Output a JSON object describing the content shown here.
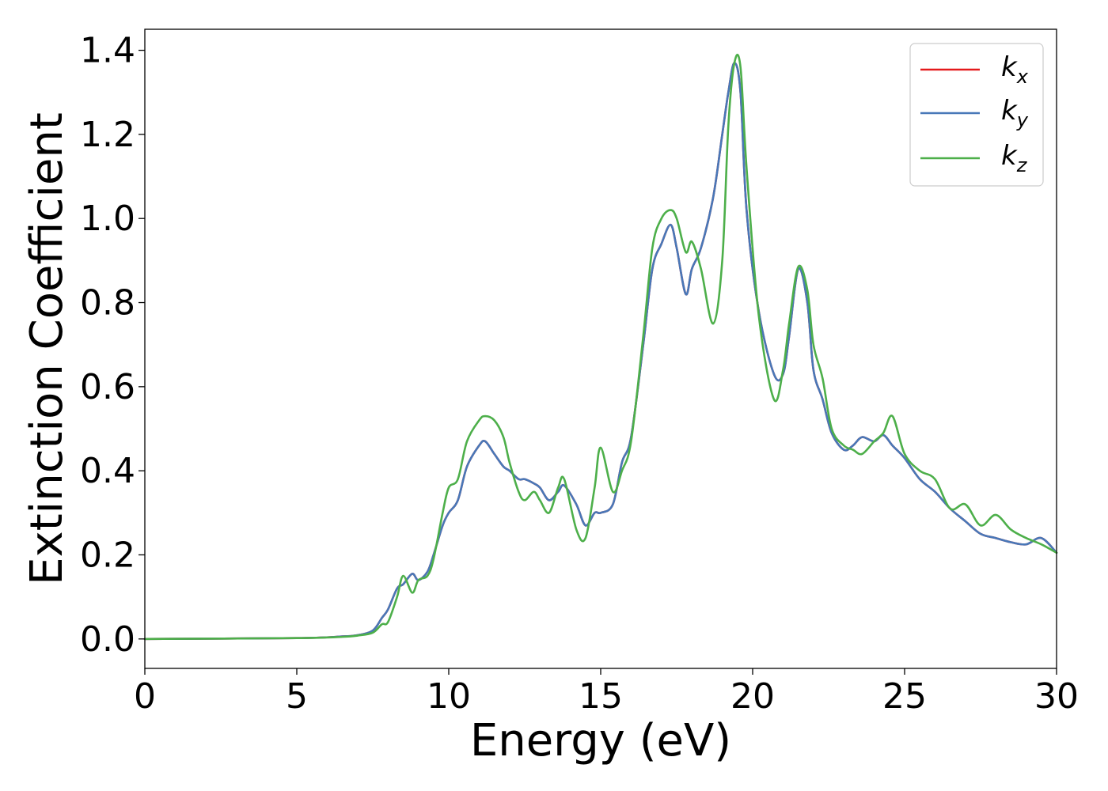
{
  "chart_data": {
    "type": "line",
    "xlabel": "Energy (eV)",
    "ylabel": "Extinction Coefficient",
    "xlim": [
      0,
      30
    ],
    "ylim": [
      -0.07,
      1.45
    ],
    "xticks": [
      "0",
      "5",
      "10",
      "15",
      "20",
      "25",
      "30"
    ],
    "yticks": [
      "0.0",
      "0.2",
      "0.4",
      "0.6",
      "0.8",
      "1.0",
      "1.2",
      "1.4"
    ],
    "grid": false,
    "legend_position": "top-right",
    "series": [
      {
        "name": "k_x",
        "label_base": "k",
        "label_sub": "x",
        "color": "#e41a1c",
        "x": [
          0,
          5,
          6.5,
          7,
          7.5,
          7.8,
          8,
          8.3,
          8.5,
          8.8,
          9,
          9.3,
          9.5,
          9.8,
          10,
          10.3,
          10.6,
          11,
          11.2,
          11.5,
          11.8,
          12,
          12.3,
          12.5,
          12.8,
          13,
          13.3,
          13.6,
          13.8,
          14.2,
          14.5,
          14.8,
          15,
          15.4,
          15.7,
          16,
          16.4,
          16.7,
          17,
          17.3,
          17.5,
          17.8,
          18,
          18.3,
          18.7,
          19,
          19.2,
          19.4,
          19.6,
          19.8,
          20.2,
          20.7,
          21,
          21.2,
          21.5,
          21.8,
          22,
          22.3,
          22.6,
          23,
          23.3,
          23.6,
          24,
          24.3,
          24.6,
          25,
          25.5,
          26,
          26.5,
          27,
          27.5,
          28,
          28.5,
          29,
          29.5,
          30
        ],
        "y": [
          0.0,
          0.002,
          0.006,
          0.009,
          0.02,
          0.05,
          0.07,
          0.12,
          0.13,
          0.155,
          0.14,
          0.16,
          0.2,
          0.27,
          0.3,
          0.33,
          0.41,
          0.46,
          0.47,
          0.44,
          0.41,
          0.4,
          0.38,
          0.38,
          0.37,
          0.36,
          0.33,
          0.35,
          0.365,
          0.32,
          0.27,
          0.3,
          0.3,
          0.32,
          0.42,
          0.48,
          0.7,
          0.88,
          0.94,
          0.985,
          0.93,
          0.82,
          0.88,
          0.93,
          1.05,
          1.2,
          1.3,
          1.37,
          1.3,
          1.02,
          0.78,
          0.63,
          0.63,
          0.72,
          0.88,
          0.8,
          0.64,
          0.57,
          0.49,
          0.45,
          0.46,
          0.48,
          0.47,
          0.485,
          0.46,
          0.43,
          0.38,
          0.35,
          0.31,
          0.28,
          0.25,
          0.24,
          0.23,
          0.225,
          0.24,
          0.205
        ]
      },
      {
        "name": "k_y",
        "label_base": "k",
        "label_sub": "y",
        "color": "#4878b8",
        "x": [
          0,
          5,
          6.5,
          7,
          7.5,
          7.8,
          8,
          8.3,
          8.5,
          8.8,
          9,
          9.3,
          9.5,
          9.8,
          10,
          10.3,
          10.6,
          11,
          11.2,
          11.5,
          11.8,
          12,
          12.3,
          12.5,
          12.8,
          13,
          13.3,
          13.6,
          13.8,
          14.2,
          14.5,
          14.8,
          15,
          15.4,
          15.7,
          16,
          16.4,
          16.7,
          17,
          17.3,
          17.5,
          17.8,
          18,
          18.3,
          18.7,
          19,
          19.2,
          19.4,
          19.6,
          19.8,
          20.2,
          20.7,
          21,
          21.2,
          21.5,
          21.8,
          22,
          22.3,
          22.6,
          23,
          23.3,
          23.6,
          24,
          24.3,
          24.6,
          25,
          25.5,
          26,
          26.5,
          27,
          27.5,
          28,
          28.5,
          29,
          29.5,
          30
        ],
        "y": [
          0.0,
          0.002,
          0.006,
          0.009,
          0.02,
          0.05,
          0.07,
          0.12,
          0.13,
          0.155,
          0.14,
          0.16,
          0.2,
          0.27,
          0.3,
          0.33,
          0.41,
          0.46,
          0.47,
          0.44,
          0.41,
          0.4,
          0.38,
          0.38,
          0.37,
          0.36,
          0.33,
          0.35,
          0.365,
          0.32,
          0.27,
          0.3,
          0.3,
          0.32,
          0.42,
          0.48,
          0.7,
          0.88,
          0.94,
          0.985,
          0.93,
          0.82,
          0.88,
          0.93,
          1.05,
          1.2,
          1.3,
          1.37,
          1.3,
          1.02,
          0.78,
          0.63,
          0.63,
          0.72,
          0.88,
          0.8,
          0.64,
          0.57,
          0.49,
          0.45,
          0.46,
          0.48,
          0.47,
          0.485,
          0.46,
          0.43,
          0.38,
          0.35,
          0.31,
          0.28,
          0.25,
          0.24,
          0.23,
          0.225,
          0.24,
          0.205
        ]
      },
      {
        "name": "k_z",
        "label_base": "k",
        "label_sub": "z",
        "color": "#4daf4a",
        "x": [
          0,
          5,
          6.5,
          7,
          7.5,
          7.8,
          8,
          8.3,
          8.5,
          8.8,
          9,
          9.3,
          9.5,
          9.8,
          10,
          10.3,
          10.6,
          11,
          11.2,
          11.5,
          11.8,
          12,
          12.3,
          12.5,
          12.8,
          13,
          13.3,
          13.6,
          13.8,
          14.2,
          14.5,
          14.8,
          15,
          15.4,
          15.7,
          16,
          16.4,
          16.7,
          17,
          17.3,
          17.5,
          17.8,
          18,
          18.3,
          18.7,
          19,
          19.2,
          19.4,
          19.6,
          19.8,
          20.2,
          20.7,
          21,
          21.2,
          21.5,
          21.8,
          22,
          22.3,
          22.6,
          23,
          23.3,
          23.6,
          24,
          24.3,
          24.6,
          25,
          25.5,
          26,
          26.5,
          27,
          27.5,
          28,
          28.5,
          29,
          29.5,
          30
        ],
        "y": [
          0.0,
          0.002,
          0.005,
          0.008,
          0.015,
          0.035,
          0.04,
          0.1,
          0.15,
          0.11,
          0.14,
          0.15,
          0.19,
          0.3,
          0.36,
          0.38,
          0.47,
          0.52,
          0.53,
          0.52,
          0.48,
          0.42,
          0.35,
          0.33,
          0.35,
          0.33,
          0.3,
          0.36,
          0.38,
          0.26,
          0.24,
          0.36,
          0.455,
          0.35,
          0.4,
          0.47,
          0.72,
          0.93,
          1.0,
          1.02,
          1.0,
          0.92,
          0.945,
          0.88,
          0.75,
          0.9,
          1.22,
          1.37,
          1.36,
          1.12,
          0.77,
          0.57,
          0.64,
          0.75,
          0.885,
          0.83,
          0.7,
          0.62,
          0.5,
          0.46,
          0.45,
          0.44,
          0.47,
          0.49,
          0.53,
          0.44,
          0.4,
          0.38,
          0.31,
          0.32,
          0.27,
          0.295,
          0.26,
          0.24,
          0.225,
          0.205
        ]
      }
    ]
  }
}
